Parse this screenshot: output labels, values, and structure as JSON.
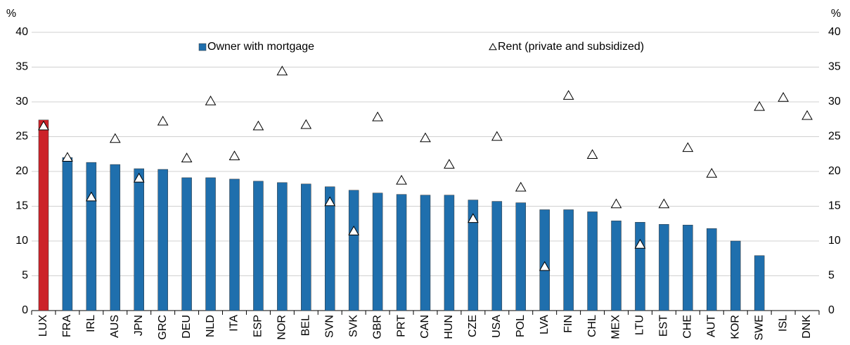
{
  "chart_data": {
    "type": "bar",
    "y_label": "%",
    "y2_label": "%",
    "categories": [
      "LUX",
      "FRA",
      "IRL",
      "AUS",
      "JPN",
      "GRC",
      "DEU",
      "NLD",
      "ITA",
      "ESP",
      "NOR",
      "BEL",
      "SVN",
      "SVK",
      "GBR",
      "PRT",
      "CAN",
      "HUN",
      "CZE",
      "USA",
      "POL",
      "LVA",
      "FIN",
      "CHL",
      "MEX",
      "LTU",
      "EST",
      "CHE",
      "AUT",
      "KOR",
      "SWE",
      "ISL",
      "DNK"
    ],
    "series": [
      {
        "name": "Owner with mortgage",
        "mark": "bar",
        "color": "#1f6fad",
        "highlight": {
          "category": "LUX",
          "color": "#cc2229"
        },
        "values": [
          27.4,
          22.0,
          21.3,
          21.0,
          20.4,
          20.3,
          19.1,
          19.1,
          18.9,
          18.6,
          18.4,
          18.2,
          17.8,
          17.3,
          16.9,
          16.7,
          16.6,
          16.6,
          15.9,
          15.7,
          15.5,
          14.5,
          14.5,
          14.2,
          12.9,
          12.7,
          12.4,
          12.3,
          11.8,
          10.0,
          7.9,
          null,
          null
        ]
      },
      {
        "name": "Rent (private and subsidized)",
        "mark": "triangle",
        "color": "#ffffff",
        "values": [
          26.5,
          22.0,
          16.3,
          24.7,
          19.0,
          27.2,
          21.9,
          30.1,
          22.2,
          26.5,
          34.4,
          26.7,
          15.6,
          11.4,
          27.8,
          18.7,
          24.8,
          21.0,
          13.2,
          25.0,
          17.7,
          6.3,
          30.9,
          22.4,
          15.3,
          9.5,
          15.3,
          23.4,
          19.7,
          null,
          29.3,
          30.6,
          28.0
        ]
      }
    ],
    "ylim": [
      0,
      40
    ],
    "yticks": [
      0,
      5,
      10,
      15,
      20,
      25,
      30,
      35,
      40
    ],
    "y2lim": [
      0,
      40
    ],
    "y2ticks": [
      0,
      5,
      10,
      15,
      20,
      25,
      30,
      35,
      40
    ],
    "grid": true
  }
}
